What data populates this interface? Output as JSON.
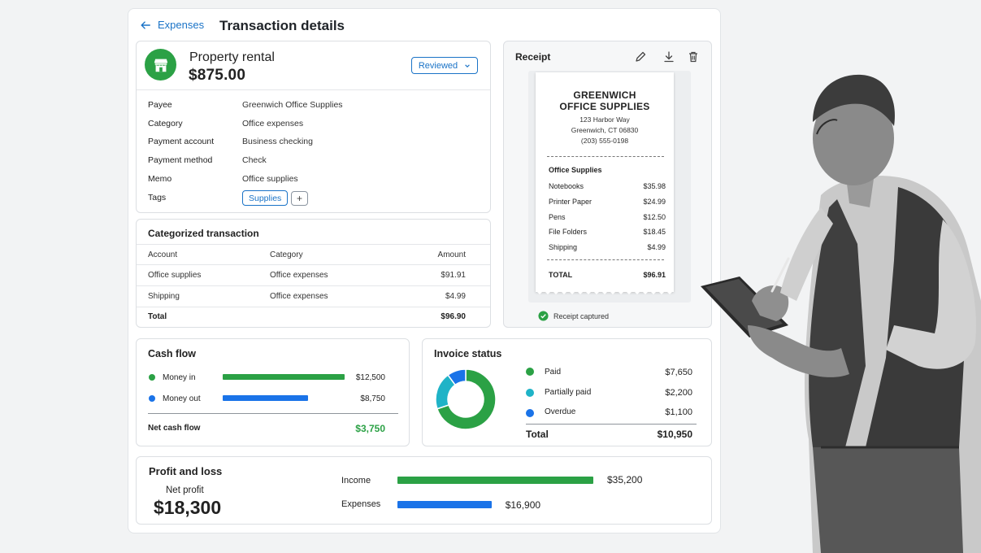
{
  "header": {
    "back_label": "Expenses",
    "title": "Transaction details"
  },
  "transaction": {
    "name": "Property rental",
    "amount": "$875.00",
    "status": "Reviewed",
    "fields": [
      {
        "label": "Payee",
        "value": "Greenwich Office Supplies"
      },
      {
        "label": "Category",
        "value": "Office expenses"
      },
      {
        "label": "Payment account",
        "value": "Business checking"
      },
      {
        "label": "Payment method",
        "value": "Check"
      },
      {
        "label": "Memo",
        "value": "Office supplies"
      }
    ],
    "tags_label": "Tags",
    "tags": [
      "Supplies"
    ],
    "add_tag": "+"
  },
  "categorized": {
    "title": "Categorized transaction",
    "columns": [
      "Account",
      "Category",
      "Amount"
    ],
    "rows": [
      {
        "account": "Office supplies",
        "category": "Office expenses",
        "amount": "$91.91"
      },
      {
        "account": "Shipping",
        "category": "Office expenses",
        "amount": "$4.99"
      }
    ],
    "total_label": "Total",
    "total": "$96.90"
  },
  "receipt": {
    "title": "Receipt",
    "store_line1": "GREENWICH",
    "store_line2": "OFFICE SUPPLIES",
    "address1": "123 Harbor Way",
    "address2": "Greenwich, CT 06830",
    "phone": "(203) 555-0198",
    "section": "Office Supplies",
    "items": [
      {
        "name": "Notebooks",
        "price": "$35.98"
      },
      {
        "name": "Printer Paper",
        "price": "$24.99"
      },
      {
        "name": "Pens",
        "price": "$12.50"
      },
      {
        "name": "File Folders",
        "price": "$18.45"
      },
      {
        "name": "Shipping",
        "price": "$4.99"
      }
    ],
    "total_label": "TOTAL",
    "total": "$96.91",
    "captured": "Receipt captured"
  },
  "cash_flow": {
    "title": "Cash flow",
    "rows": [
      {
        "label": "Money in",
        "value": "$12,500",
        "amount": 12500,
        "color": "#2ba145"
      },
      {
        "label": "Money out",
        "value": "$8,750",
        "amount": 8750,
        "color": "#1a73e8"
      }
    ],
    "net_label": "Net cash flow",
    "net_value": "$3,750",
    "net_color": "#2ba145"
  },
  "invoice": {
    "title": "Invoice status",
    "rows": [
      {
        "label": "Paid",
        "value": "$7,650",
        "amount": 7650,
        "color": "#2ba145"
      },
      {
        "label": "Partially paid",
        "value": "$2,200",
        "amount": 2200,
        "color": "#1fb3c7"
      },
      {
        "label": "Overdue",
        "value": "$1,100",
        "amount": 1100,
        "color": "#1a73e8"
      }
    ],
    "total_label": "Total",
    "total_value": "$10,950"
  },
  "profit_loss": {
    "title": "Profit and loss",
    "net_label": "Net profit",
    "net_value": "$18,300",
    "rows": [
      {
        "label": "Income",
        "value": "$35,200",
        "amount": 35200,
        "color": "#2ba145"
      },
      {
        "label": "Expenses",
        "value": "$16,900",
        "amount": 16900,
        "color": "#1a73e8"
      }
    ]
  },
  "icons": {
    "back": "arrow-left-icon",
    "store": "storefront-icon",
    "edit": "pencil-icon",
    "download": "download-icon",
    "delete": "trash-icon",
    "captured": "check-circle-icon"
  },
  "colors": {
    "accent": "#1a73c7",
    "green": "#2ba145",
    "blue": "#1a73e8",
    "teal": "#1fb3c7"
  }
}
